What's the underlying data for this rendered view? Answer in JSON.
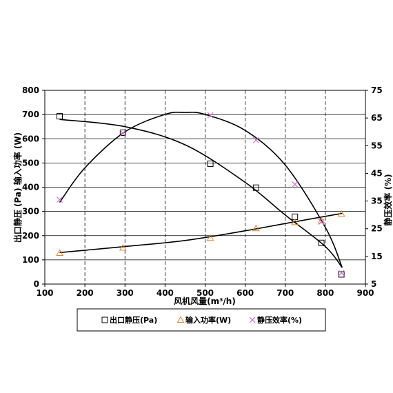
{
  "chart_data": {
    "type": "scatter",
    "xlabel": "风机风量(m³/h)",
    "ylabel_left": "出口静压 (Pa) 输入功率 (W)",
    "ylabel_right": "静压效率 (%)",
    "xlim": [
      100,
      900
    ],
    "xticks": [
      "100",
      "200",
      "300",
      "400",
      "500",
      "600",
      "700",
      "800",
      "900"
    ],
    "ylim_left": [
      0,
      800
    ],
    "yticks_left": [
      "0",
      "100",
      "200",
      "300",
      "400",
      "500",
      "600",
      "700",
      "800"
    ],
    "ylim_right": [
      5,
      75
    ],
    "yticks_right": [
      "5",
      "15",
      "25",
      "35",
      "45",
      "55",
      "65",
      "75"
    ],
    "grid": true,
    "legend_position": "bottom",
    "series": [
      {
        "name": "出口静压(Pa)",
        "marker": "square",
        "color": "#000000",
        "axis": "left",
        "x": [
          137,
          295,
          513,
          627,
          724,
          790,
          840
        ],
        "y": [
          693,
          625,
          497,
          398,
          278,
          170,
          40
        ],
        "fit": [
          [
            137,
            680
          ],
          [
            300,
            650
          ],
          [
            450,
            575
          ],
          [
            600,
            420
          ],
          [
            700,
            285
          ],
          [
            800,
            155
          ],
          [
            842,
            68
          ]
        ]
      },
      {
        "name": "输入功率(W)",
        "marker": "triangle",
        "color": "#e8822a",
        "axis": "left",
        "x": [
          137,
          295,
          513,
          627,
          724,
          790,
          840
        ],
        "y": [
          128,
          150,
          190,
          230,
          255,
          262,
          290
        ],
        "fit": [
          [
            137,
            130
          ],
          [
            300,
            155
          ],
          [
            450,
            180
          ],
          [
            600,
            220
          ],
          [
            700,
            250
          ],
          [
            842,
            292
          ]
        ]
      },
      {
        "name": "静压效率(%)",
        "marker": "x",
        "color": "#d46ad4",
        "axis": "right",
        "x": [
          137,
          295,
          513,
          627,
          724,
          790,
          840
        ],
        "y": [
          35.5,
          59.5,
          66,
          57,
          41,
          27.5,
          9
        ],
        "fit": [
          [
            137,
            34.5
          ],
          [
            200,
            47
          ],
          [
            300,
            60
          ],
          [
            400,
            66.3
          ],
          [
            450,
            67
          ],
          [
            500,
            66.3
          ],
          [
            600,
            60.5
          ],
          [
            700,
            48
          ],
          [
            800,
            25.5
          ],
          [
            842,
            11
          ]
        ]
      }
    ]
  }
}
